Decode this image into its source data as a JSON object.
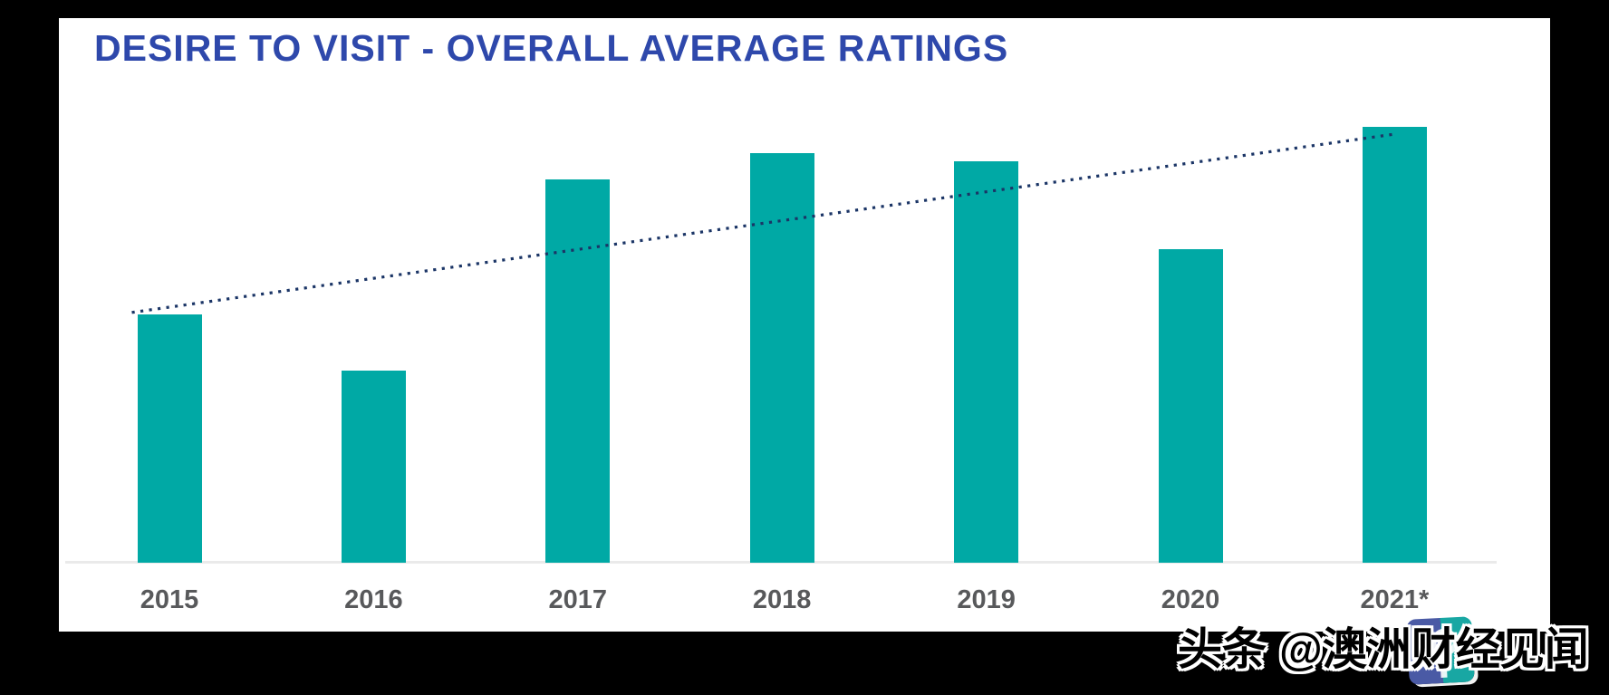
{
  "title": {
    "text": "DESIRE TO VISIT - OVERALL AVERAGE RATINGS",
    "color": "#2E48AB"
  },
  "chart_data": {
    "type": "bar",
    "title": "DESIRE TO VISIT - OVERALL AVERAGE RATINGS",
    "categories": [
      "2015",
      "2016",
      "2017",
      "2018",
      "2019",
      "2020",
      "2021*"
    ],
    "values": [
      57,
      44,
      88,
      94,
      92,
      72,
      100
    ],
    "xlabel": "",
    "ylabel": "",
    "ylim": [
      0,
      105
    ],
    "grid": false,
    "legend": false,
    "y_axis_shown": false,
    "bar_color": "#00A9A5",
    "tick_label_color": "#58595B",
    "axis_line_color": "#EAEAEA",
    "trendline": {
      "style": "dotted",
      "color": "#1B3566",
      "from_category": "2015",
      "to_category": "2021*",
      "direction": "rising"
    }
  },
  "frame": {
    "color": "#000000"
  },
  "watermark": {
    "prefix": "头条",
    "handle": "@澳洲财经见闻",
    "text_color": "#000000",
    "outline_color": "#FFFFFF",
    "logo_colors": {
      "left": "#4A5AA5",
      "right": "#18A7A3"
    }
  }
}
